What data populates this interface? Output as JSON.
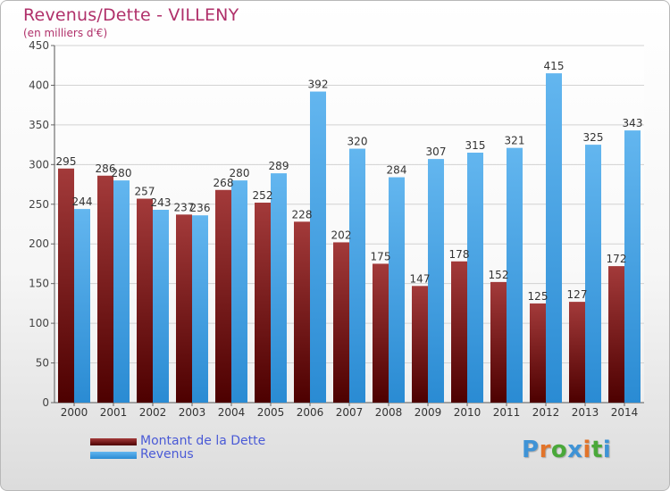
{
  "header": {
    "title": "Revenus/Dette - VILLENY",
    "subtitle": "(en milliers d'€)"
  },
  "legend": {
    "debt_label": "Montant de la Dette",
    "revenue_label": "Revenus"
  },
  "logo": {
    "text": "Proxiti"
  },
  "colors": {
    "debt_top": "#a33a3a",
    "debt_bottom": "#4d0000",
    "revenue_top": "#63b6ef",
    "revenue_bottom": "#2a8bd3",
    "title": "#b0306a",
    "legend_text": "#4a5ad6"
  },
  "chart_data": {
    "type": "bar",
    "title": "Revenus/Dette - VILLENY",
    "subtitle": "(en milliers d'€)",
    "xlabel": "",
    "ylabel": "",
    "ylim": [
      0,
      450
    ],
    "yticks": [
      0,
      50,
      100,
      150,
      200,
      250,
      300,
      350,
      400,
      450
    ],
    "grid": true,
    "legend_position": "bottom-left",
    "categories": [
      "2000",
      "2001",
      "2002",
      "2003",
      "2004",
      "2005",
      "2006",
      "2007",
      "2008",
      "2009",
      "2010",
      "2011",
      "2012",
      "2013",
      "2014"
    ],
    "series": [
      {
        "name": "Montant de la Dette",
        "values": [
          295,
          286,
          257,
          237,
          268,
          252,
          228,
          202,
          175,
          147,
          178,
          152,
          125,
          127,
          172
        ]
      },
      {
        "name": "Revenus",
        "values": [
          244,
          280,
          243,
          236,
          280,
          289,
          392,
          320,
          284,
          307,
          315,
          321,
          415,
          325,
          343
        ]
      }
    ]
  }
}
